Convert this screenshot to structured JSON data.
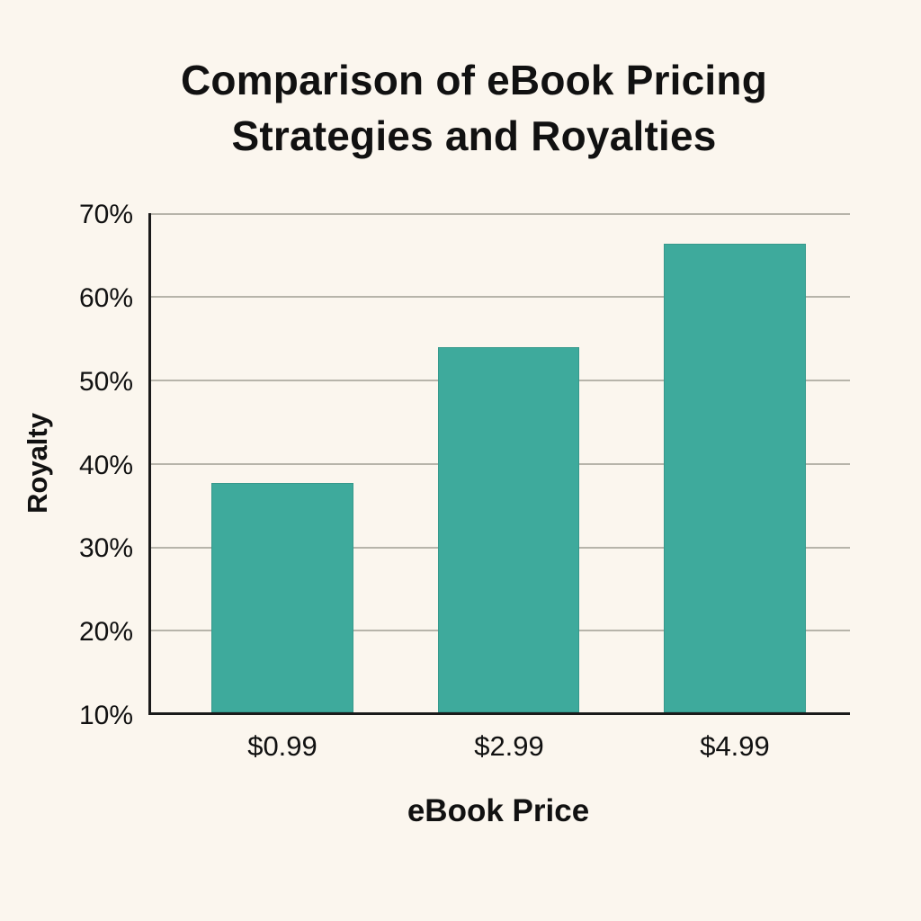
{
  "title": {
    "line1": "Comparison of eBook Pricing",
    "line2": "Strategies and Royalties"
  },
  "axes": {
    "xlabel": "eBook Price",
    "ylabel": "Royalty",
    "yticks": [
      "70%",
      "60%",
      "50%",
      "40%",
      "30%",
      "20%",
      "10%"
    ],
    "xticks": [
      "$0.99",
      "$2.99",
      "$4.99"
    ]
  },
  "colors": {
    "background": "#FBF6EE",
    "bar": "#3EAA9C",
    "gridline": "#B7B4AA",
    "axis": "#1A1A1A"
  },
  "chart_data": {
    "type": "bar",
    "title": "Comparison of eBook Pricing Strategies and Royalties",
    "xlabel": "eBook Price",
    "ylabel": "Royalty",
    "categories": [
      "$0.99",
      "$2.99",
      "$4.99"
    ],
    "values": [
      37.6,
      53.9,
      66.3
    ],
    "unit": "%",
    "ylim": [
      10,
      70
    ],
    "yticks": [
      10,
      20,
      30,
      40,
      50,
      60,
      70
    ],
    "ytick_labels": [
      "10%",
      "20%",
      "30%",
      "40%",
      "50%",
      "60%",
      "70%"
    ],
    "grid": "horizontal",
    "legend": null,
    "bar_color": "#3EAA9C"
  }
}
